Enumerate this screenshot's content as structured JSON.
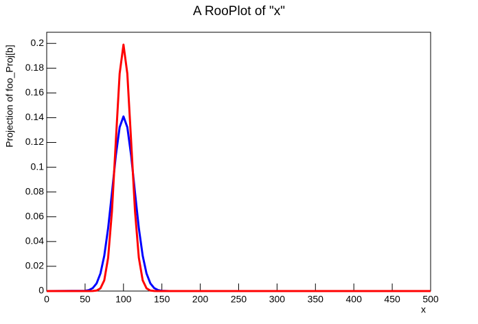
{
  "chart_data": {
    "type": "line",
    "title": "A RooPlot of \"x\"",
    "x_label": "x",
    "y_label": "Projection of foo_Proj[b]",
    "x": [
      0,
      50,
      55,
      60,
      65,
      70,
      75,
      80,
      85,
      90,
      95,
      100,
      105,
      110,
      115,
      120,
      125,
      130,
      135,
      140,
      145,
      150,
      160,
      200,
      300,
      400,
      500
    ],
    "series": [
      {
        "color": "#0000ff",
        "values": [
          0,
          0.0002,
          0.0008,
          0.0024,
          0.0062,
          0.0142,
          0.0286,
          0.0508,
          0.0794,
          0.1093,
          0.1323,
          0.141,
          0.1323,
          0.1093,
          0.0794,
          0.0508,
          0.0286,
          0.0142,
          0.0062,
          0.0024,
          0.0008,
          0.0002,
          0,
          0,
          0,
          0,
          0
        ]
      },
      {
        "color": "#ff0000",
        "values": [
          0,
          0,
          0,
          0.0001,
          0.0004,
          0.0022,
          0.0087,
          0.0269,
          0.0646,
          0.1207,
          0.1756,
          0.199,
          0.1756,
          0.1207,
          0.0646,
          0.0269,
          0.0087,
          0.0022,
          0.0004,
          0.0001,
          0,
          0,
          0,
          0,
          0,
          0,
          0
        ]
      }
    ],
    "xlim": [
      0,
      500
    ],
    "ylim": [
      0,
      0.209
    ],
    "xticks": [
      0,
      50,
      100,
      150,
      200,
      250,
      300,
      350,
      400,
      450,
      500
    ],
    "yticks": [
      0,
      0.02,
      0.04,
      0.06,
      0.08,
      0.1,
      0.12,
      0.14,
      0.16,
      0.18,
      0.2
    ],
    "grid": false
  }
}
